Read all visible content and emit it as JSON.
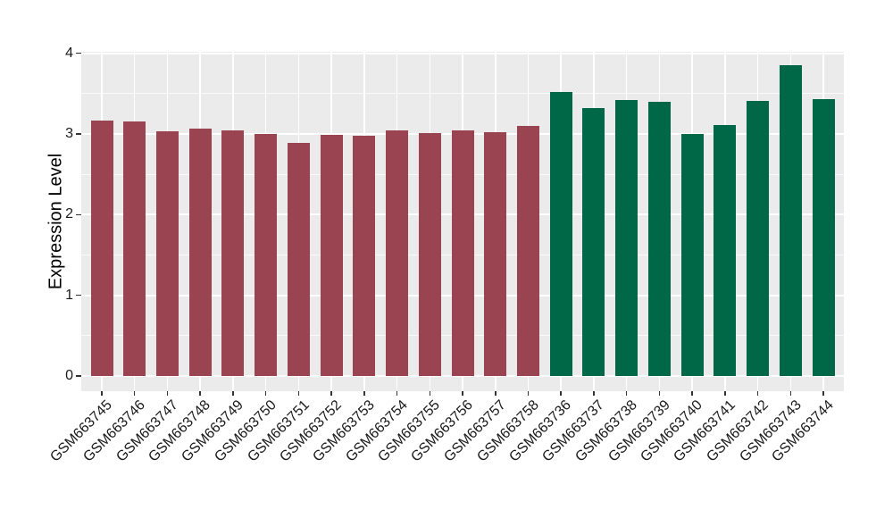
{
  "chart_data": {
    "type": "bar",
    "title": "",
    "xlabel": "",
    "ylabel": "Expression Level",
    "ylim": [
      0,
      4.02
    ],
    "yticks": [
      0,
      1,
      2,
      3,
      4
    ],
    "yticks_minor": [
      0.5,
      1.5,
      2.5,
      3.5
    ],
    "grid": true,
    "legend": false,
    "categories": [
      "GSM663745",
      "GSM663746",
      "GSM663747",
      "GSM663748",
      "GSM663749",
      "GSM663750",
      "GSM663751",
      "GSM663752",
      "GSM663753",
      "GSM663754",
      "GSM663755",
      "GSM663756",
      "GSM663757",
      "GSM663758",
      "GSM663736",
      "GSM663737",
      "GSM663738",
      "GSM663739",
      "GSM663740",
      "GSM663741",
      "GSM663742",
      "GSM663743",
      "GSM663744"
    ],
    "values": [
      3.17,
      3.16,
      3.03,
      3.07,
      3.04,
      3.0,
      2.89,
      2.99,
      2.98,
      3.04,
      3.01,
      3.04,
      3.02,
      3.1,
      3.52,
      3.32,
      3.42,
      3.4,
      3.0,
      3.11,
      3.41,
      3.85,
      3.43
    ],
    "bar_group_index": [
      0,
      0,
      0,
      0,
      0,
      0,
      0,
      0,
      0,
      0,
      0,
      0,
      0,
      0,
      1,
      1,
      1,
      1,
      1,
      1,
      1,
      1,
      1
    ],
    "group_colors": [
      "#9A4351",
      "#006847"
    ]
  },
  "style": {
    "figure_bg": "#FFFFFF",
    "panel_bg": "#EBEBEB",
    "grid_major_color": "#FFFFFF",
    "grid_minor_color": "#FFFFFF",
    "tick_color": "#333333",
    "text_color": "#1A1A1A"
  }
}
